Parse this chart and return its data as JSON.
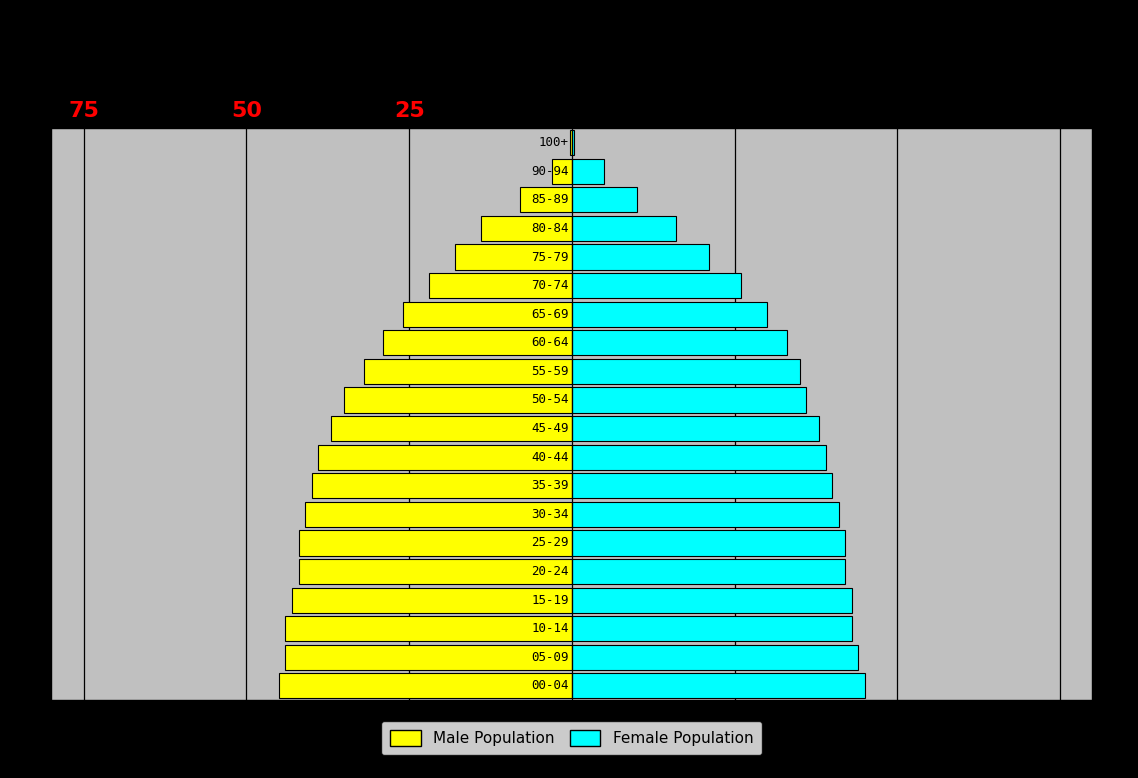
{
  "age_groups_bottom_to_top": [
    "00-04",
    "05-09",
    "10-14",
    "15-19",
    "20-24",
    "25-29",
    "30-34",
    "35-39",
    "40-44",
    "45-49",
    "50-54",
    "55-59",
    "60-64",
    "65-69",
    "70-74",
    "75-79",
    "80-84",
    "85-89",
    "90-94",
    "100+"
  ],
  "male_values_bottom_to_top": [
    45,
    44,
    44,
    43,
    42,
    42,
    41,
    40,
    39,
    37,
    35,
    32,
    29,
    26,
    22,
    18,
    14,
    8,
    3,
    0.3
  ],
  "female_values_bottom_to_top": [
    45,
    44,
    43,
    43,
    42,
    42,
    41,
    40,
    39,
    38,
    36,
    35,
    33,
    30,
    26,
    21,
    16,
    10,
    5,
    0.3
  ],
  "male_color": "#FFFF00",
  "female_color": "#00FFFF",
  "bar_edge_color": "#000000",
  "chart_bg_color": "#C0C0C0",
  "outer_bg_color": "#000000",
  "tick_color": "#FF0000",
  "tick_values": [
    25,
    50,
    75
  ],
  "xlim_left": -80,
  "xlim_right": 80,
  "legend_labels": [
    "Male Population",
    "Female Population"
  ],
  "legend_colors": [
    "#FFFF00",
    "#00FFFF"
  ],
  "bar_height": 0.88,
  "label_fontsize": 9,
  "tick_fontsize": 16,
  "legend_fontsize": 11
}
